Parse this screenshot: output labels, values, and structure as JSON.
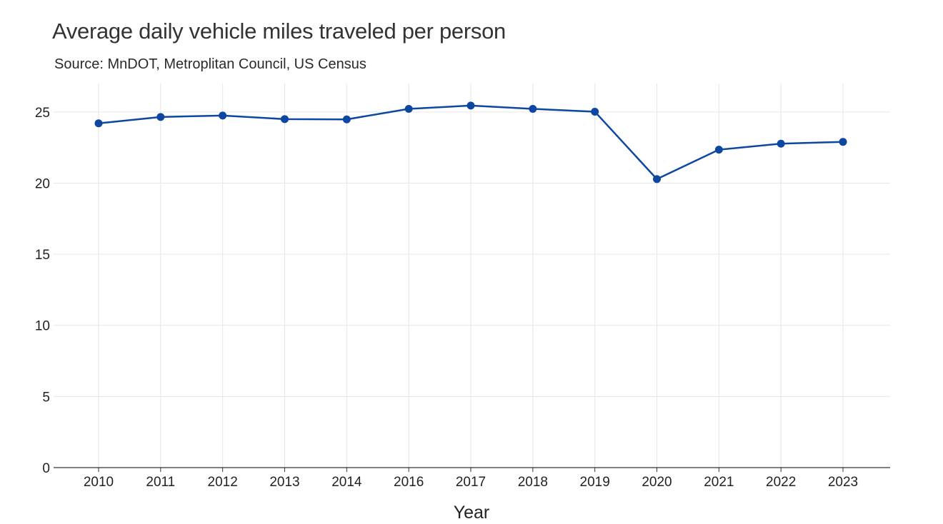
{
  "chart_data": {
    "type": "line",
    "title": "Average daily vehicle miles traveled per person",
    "subtitle": "Source: MnDOT, Metroplitan Council, US Census",
    "xlabel": "Year",
    "ylabel": "",
    "categories": [
      "2010",
      "2011",
      "2012",
      "2013",
      "2014",
      "2016",
      "2017",
      "2018",
      "2019",
      "2020",
      "2021",
      "2022",
      "2023"
    ],
    "series": [
      {
        "values": [
          24.2,
          24.65,
          24.75,
          24.5,
          24.48,
          25.22,
          25.45,
          25.22,
          25.02,
          20.28,
          22.35,
          22.77,
          22.9
        ]
      }
    ],
    "ylim": [
      0,
      27
    ],
    "yticks": [
      0,
      5,
      10,
      15,
      20,
      25
    ],
    "grid": true,
    "legend": "none",
    "colors": {
      "line": "#0d47a1",
      "grid": "#e6e6e6",
      "axis": "#333333"
    }
  }
}
